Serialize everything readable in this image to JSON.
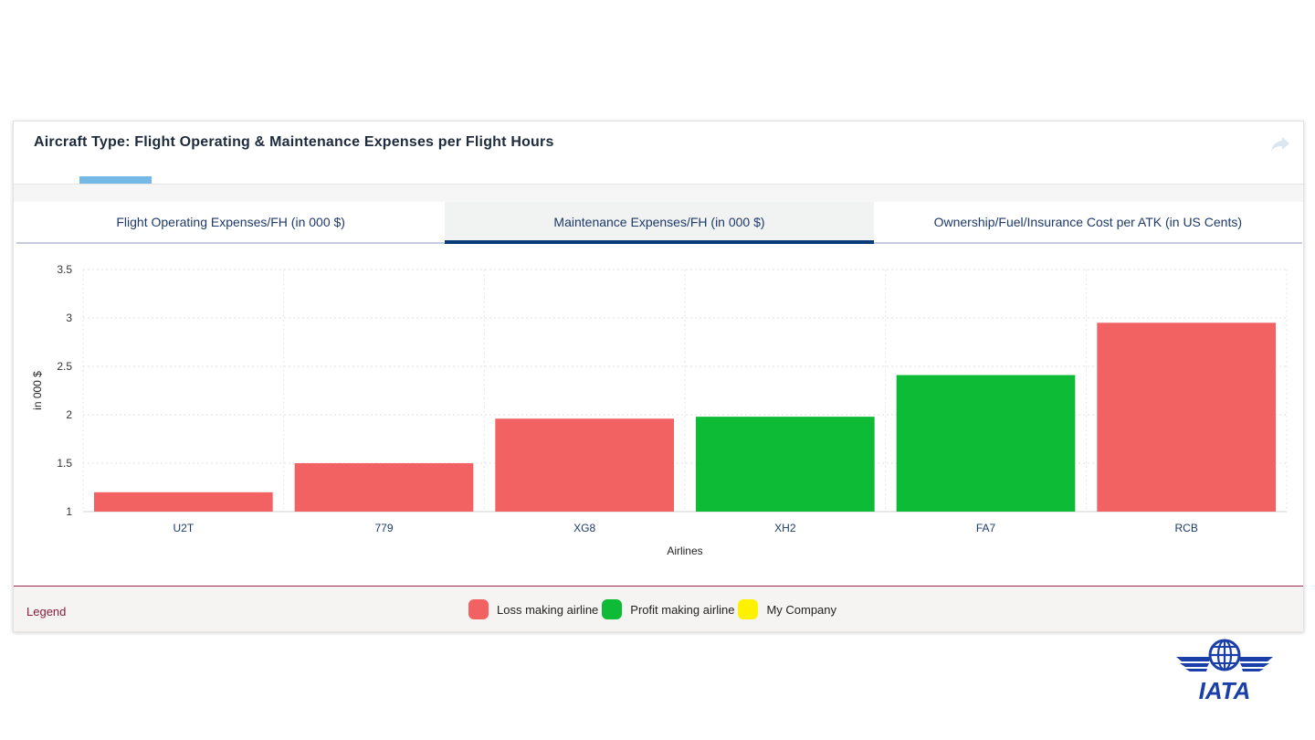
{
  "panel": {
    "title": "Aircraft Type: Flight Operating & Maintenance Expenses per Flight Hours",
    "share_icon": "share-arrow-icon"
  },
  "tabs": [
    {
      "label": "Flight Operating Expenses/FH (in 000 $)",
      "active": false
    },
    {
      "label": "Maintenance Expenses/FH (in 000 $)",
      "active": true
    },
    {
      "label": "Ownership/Fuel/Insurance Cost per ATK (in US Cents)",
      "active": false
    }
  ],
  "colors": {
    "loss": "#f26262",
    "profit": "#0dbb36",
    "my_company": "#fff200",
    "accent": "#0b3a78"
  },
  "chart_data": {
    "type": "bar",
    "categories": [
      "U2T",
      "779",
      "XG8",
      "XH2",
      "FA7",
      "RCB"
    ],
    "values": [
      1.2,
      1.5,
      1.96,
      1.98,
      2.41,
      2.95
    ],
    "status": [
      "loss",
      "loss",
      "loss",
      "profit",
      "profit",
      "loss"
    ],
    "title": "",
    "xlabel": "Airlines",
    "ylabel": "in 000 $",
    "ylim": [
      1,
      3.5
    ],
    "yticks": [
      1,
      1.5,
      2,
      2.5,
      3,
      3.5
    ],
    "grid": true
  },
  "legend": {
    "title": "Legend",
    "items": [
      {
        "label": "Loss making airline",
        "key": "loss"
      },
      {
        "label": "Profit making airline",
        "key": "profit"
      },
      {
        "label": "My Company",
        "key": "my_company"
      }
    ]
  },
  "logo": {
    "text": "IATA",
    "icon": "iata-globe-wings-icon"
  }
}
